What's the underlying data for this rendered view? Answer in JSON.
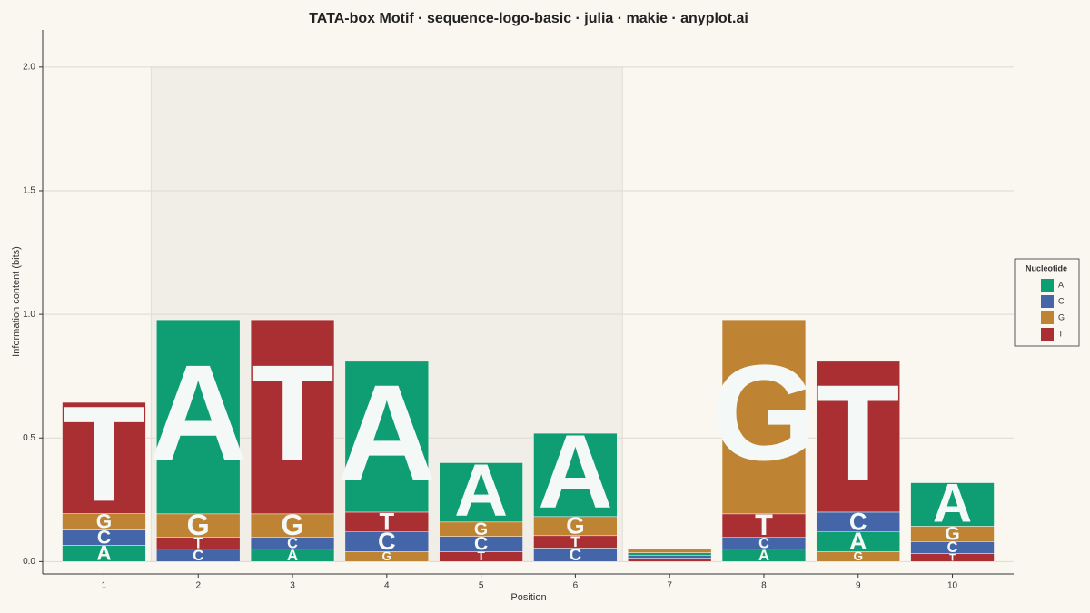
{
  "chart_data": {
    "type": "sequence-logo",
    "title": "TATA-box Motif · sequence-logo-basic · julia · makie · anyplot.ai",
    "xlabel": "Position",
    "ylabel": "Information content (bits)",
    "xlim": [
      0.35,
      10.65
    ],
    "ylim": [
      -0.05,
      2.15
    ],
    "yticks": [
      {
        "value": 0,
        "label": "0.0"
      },
      {
        "value": 0.5,
        "label": "0.5"
      },
      {
        "value": 1,
        "label": "1.0"
      },
      {
        "value": 1.5,
        "label": "1.5"
      },
      {
        "value": 2,
        "label": "2.0"
      }
    ],
    "grid": true,
    "highlight": [
      2,
      6
    ],
    "legend_title": "Nucleotide",
    "legend_position": "right",
    "legend": [
      {
        "name": "A",
        "color": "#0f9e74"
      },
      {
        "name": "C",
        "color": "#4466a8"
      },
      {
        "name": "G",
        "color": "#be8434"
      },
      {
        "name": "T",
        "color": "#aa2f33"
      }
    ],
    "positions": [
      {
        "x": 1,
        "stack": [
          {
            "base": "A",
            "value": 0.066
          },
          {
            "base": "C",
            "value": 0.062
          },
          {
            "base": "G",
            "value": 0.066
          },
          {
            "base": "T",
            "value": 0.45
          }
        ]
      },
      {
        "x": 2,
        "stack": [
          {
            "base": "C",
            "value": 0.05
          },
          {
            "base": "T",
            "value": 0.048
          },
          {
            "base": "G",
            "value": 0.095
          },
          {
            "base": "A",
            "value": 0.785
          }
        ]
      },
      {
        "x": 3,
        "stack": [
          {
            "base": "A",
            "value": 0.05
          },
          {
            "base": "C",
            "value": 0.048
          },
          {
            "base": "G",
            "value": 0.095
          },
          {
            "base": "T",
            "value": 0.785
          }
        ]
      },
      {
        "x": 4,
        "stack": [
          {
            "base": "G",
            "value": 0.04
          },
          {
            "base": "C",
            "value": 0.08
          },
          {
            "base": "T",
            "value": 0.08
          },
          {
            "base": "A",
            "value": 0.61
          }
        ]
      },
      {
        "x": 5,
        "stack": [
          {
            "base": "T",
            "value": 0.04
          },
          {
            "base": "C",
            "value": 0.062
          },
          {
            "base": "G",
            "value": 0.058
          },
          {
            "base": "A",
            "value": 0.24
          }
        ]
      },
      {
        "x": 6,
        "stack": [
          {
            "base": "C",
            "value": 0.055
          },
          {
            "base": "T",
            "value": 0.05
          },
          {
            "base": "G",
            "value": 0.077
          },
          {
            "base": "A",
            "value": 0.337
          }
        ]
      },
      {
        "x": 7,
        "stack": [
          {
            "base": "T",
            "value": 0.014
          },
          {
            "base": "C",
            "value": 0.012
          },
          {
            "base": "A",
            "value": 0.01
          },
          {
            "base": "G",
            "value": 0.014
          }
        ]
      },
      {
        "x": 8,
        "stack": [
          {
            "base": "A",
            "value": 0.05
          },
          {
            "base": "C",
            "value": 0.048
          },
          {
            "base": "T",
            "value": 0.095
          },
          {
            "base": "G",
            "value": 0.785
          }
        ]
      },
      {
        "x": 9,
        "stack": [
          {
            "base": "G",
            "value": 0.04
          },
          {
            "base": "A",
            "value": 0.08
          },
          {
            "base": "C",
            "value": 0.08
          },
          {
            "base": "T",
            "value": 0.61
          }
        ]
      },
      {
        "x": 10,
        "stack": [
          {
            "base": "T",
            "value": 0.033
          },
          {
            "base": "C",
            "value": 0.048
          },
          {
            "base": "G",
            "value": 0.062
          },
          {
            "base": "A",
            "value": 0.176
          }
        ]
      }
    ]
  }
}
